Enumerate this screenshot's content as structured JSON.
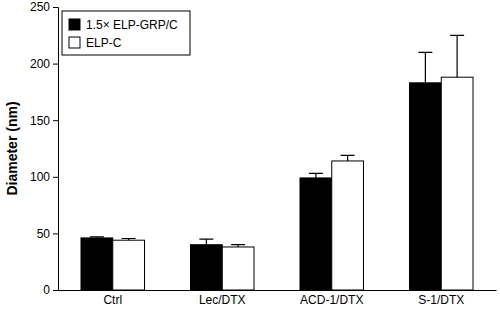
{
  "chart_data": {
    "type": "bar",
    "y_label": "Diameter (nm)",
    "categories": [
      "Ctrl",
      "Lec/DTX",
      "ACD-1/DTX",
      "S-1/DTX"
    ],
    "series": [
      {
        "name": "1.5× ELP-GRP/C",
        "color": "#000000",
        "values": [
          46,
          40,
          99,
          183
        ],
        "errors": [
          1,
          5,
          4,
          27
        ]
      },
      {
        "name": "ELP-C",
        "color": "#ffffff",
        "values": [
          44,
          38,
          114,
          188
        ],
        "errors": [
          1.5,
          2,
          5,
          37
        ]
      }
    ],
    "ylim": [
      0,
      250
    ],
    "yticks": [
      0,
      50,
      100,
      150,
      200,
      250
    ],
    "grid": false,
    "legend": "upper left"
  }
}
